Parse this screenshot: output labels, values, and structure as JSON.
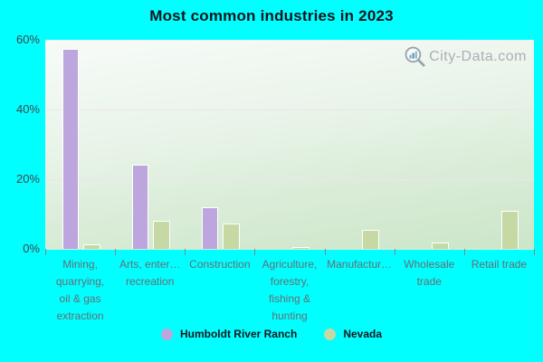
{
  "page": {
    "background": "#00ffff"
  },
  "title": "Most common industries in 2023",
  "watermark": {
    "icon": "magnifier-bar-chart-icon",
    "text": "City-Data.com",
    "color": "#a9b0b6"
  },
  "legend": {
    "items": [
      {
        "label": "Humboldt River Ranch",
        "color": "#bca6dd"
      },
      {
        "label": "Nevada",
        "color": "#c6d8a3"
      }
    ]
  },
  "chart_data": {
    "type": "bar",
    "title": "Most common industries in 2023",
    "categories": [
      "Mining, quarrying, oil & gas extraction",
      "Arts, enter… recreation",
      "Construction",
      "Agriculture, forestry, fishing & hunting",
      "Manufactur…",
      "Wholesale trade",
      "Retail trade"
    ],
    "categories_display": [
      [
        "Mining,",
        "quarrying,",
        "oil & gas",
        "extraction"
      ],
      [
        "Arts, enter…",
        "recreation"
      ],
      [
        "Construction"
      ],
      [
        "Agriculture,",
        "forestry,",
        "fishing &",
        "hunting"
      ],
      [
        "Manufactur…"
      ],
      [
        "Wholesale",
        "trade"
      ],
      [
        "Retail trade"
      ]
    ],
    "series": [
      {
        "name": "Humboldt River Ranch",
        "color": "#bca6dd",
        "values": [
          57.5,
          24.2,
          11.9,
          null,
          null,
          null,
          null
        ]
      },
      {
        "name": "Nevada",
        "color": "#c6d8a3",
        "values": [
          1.3,
          8.0,
          7.3,
          0.5,
          5.5,
          1.8,
          10.9
        ]
      }
    ],
    "xlabel": "",
    "ylabel": "",
    "ylim": [
      0,
      60
    ],
    "yticks": [
      {
        "label": "60%",
        "value": 60
      },
      {
        "label": "40%",
        "value": 40
      },
      {
        "label": "20%",
        "value": 20
      },
      {
        "label": "0%",
        "value": 0
      }
    ],
    "gridline_values": [
      40,
      20
    ],
    "grid": true,
    "legend_position": "bottom",
    "bar_border_color": "#ffffff"
  }
}
